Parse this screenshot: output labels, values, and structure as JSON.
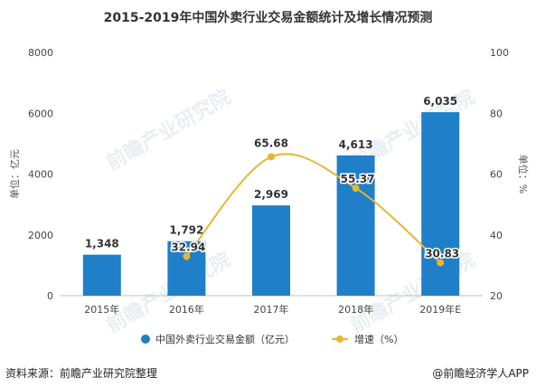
{
  "chart_data": {
    "type": "bar+line",
    "title": "2015-2019年中国外卖行业交易金额统计及增长情况预测",
    "categories": [
      "2015年",
      "2016年",
      "2017年",
      "2018年",
      "2019年E"
    ],
    "series": [
      {
        "name": "中国外卖行业交易金额（亿元）",
        "kind": "bar",
        "axis": "left",
        "values": [
          1348,
          1792,
          2969,
          4613,
          6035
        ],
        "labels": [
          "1,348",
          "1,792",
          "2,969",
          "4,613",
          "6,035"
        ],
        "color": "#1f7fc9"
      },
      {
        "name": "增速（%）",
        "kind": "line",
        "axis": "right",
        "values": [
          null,
          32.94,
          65.68,
          55.37,
          30.83
        ],
        "labels": [
          "",
          "32.94",
          "65.68",
          "55.37",
          "30.83"
        ],
        "color": "#e8b630"
      }
    ],
    "ylabel": "单位：亿元",
    "y2label": "单位：%",
    "ylim": [
      0,
      8000
    ],
    "yticks": [
      0,
      2000,
      4000,
      6000,
      8000
    ],
    "y2lim": [
      20,
      100
    ],
    "y2ticks": [
      20,
      40,
      60,
      80,
      100
    ],
    "grid": false,
    "legend_position": "bottom"
  },
  "footer": {
    "source": "资料来源：前瞻产业研究院整理",
    "brand": "@前瞻经济学人APP"
  },
  "watermark": "前瞻产业研究院"
}
